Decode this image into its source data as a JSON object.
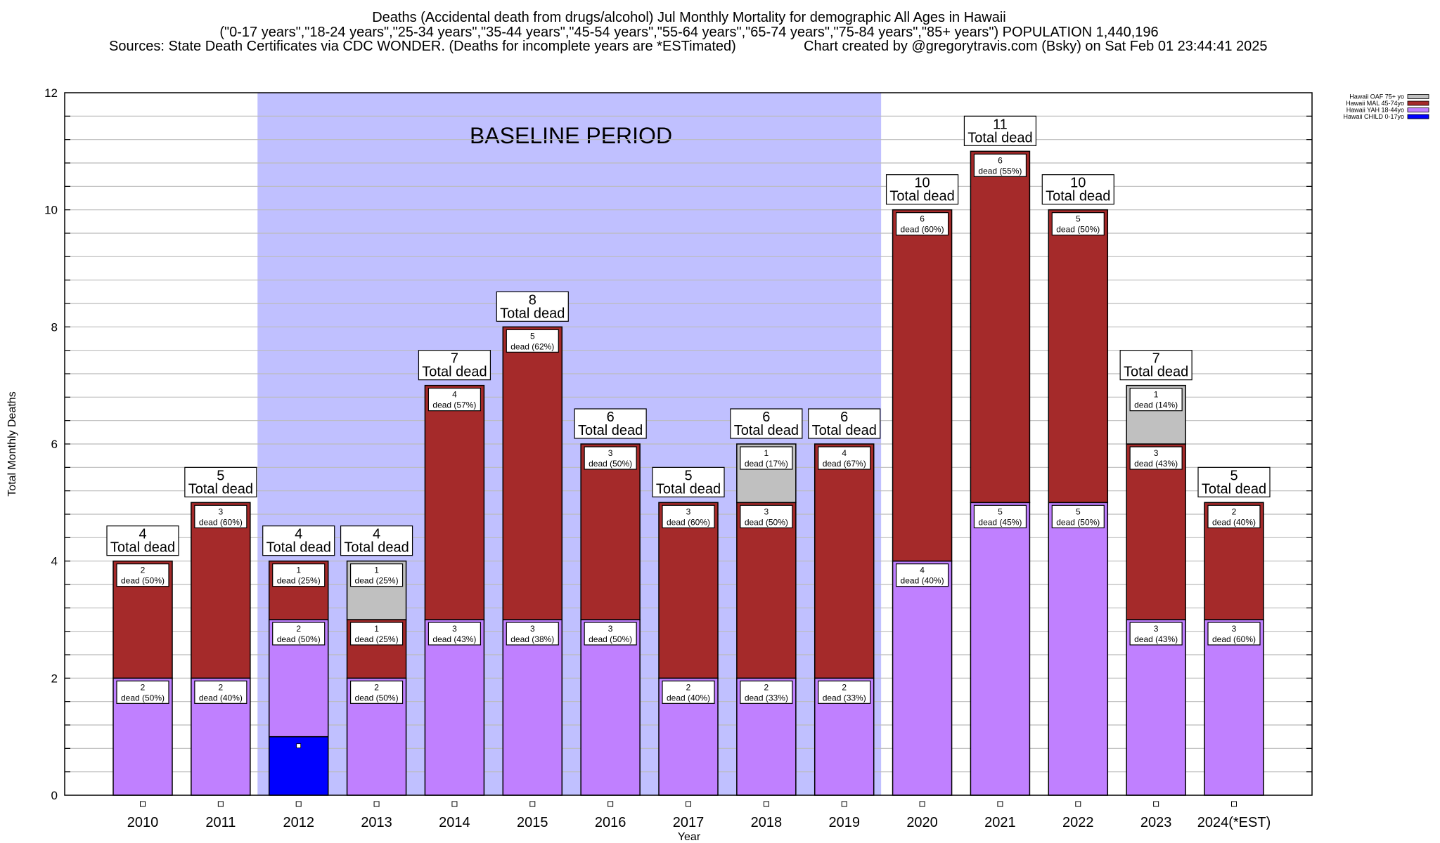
{
  "chart_data": {
    "type": "bar",
    "stacked": true,
    "title_lines": [
      "Deaths (Accidental death from drugs/alcohol) Jul Monthly Mortality for demographic All Ages in Hawaii",
      "(\"0-17 years\",\"18-24 years\",\"25-34 years\",\"35-44 years\",\"45-54 years\",\"55-64 years\",\"65-74 years\",\"75-84 years\",\"85+ years\") POPULATION 1,440,196"
    ],
    "sources": "Sources: State Death Certificates via CDC WONDER. (Deaths for incomplete years are *ESTimated)",
    "credit": "Chart created by @gregorytravis.com (Bsky) on Sat Feb 01 23:44:41 2025",
    "xlabel": "Year",
    "ylabel": "Total Monthly Deaths",
    "ylim": [
      0,
      12
    ],
    "yticks": [
      0,
      2,
      4,
      6,
      8,
      10,
      12
    ],
    "grid": true,
    "grid_step": 0.4,
    "baseline": {
      "label": "BASELINE PERIOD",
      "from": "2012",
      "to": "2019",
      "color": "#c0c0ff"
    },
    "categories": [
      "2010",
      "2011",
      "2012",
      "2013",
      "2014",
      "2015",
      "2016",
      "2017",
      "2018",
      "2019",
      "2020",
      "2021",
      "2022",
      "2023",
      "2024(*EST)"
    ],
    "series": [
      {
        "name": "Hawaii CHILD 0-17yo",
        "color": "#0000ff",
        "values": [
          0,
          0,
          1,
          0,
          0,
          0,
          0,
          0,
          0,
          0,
          0,
          0,
          0,
          0,
          0
        ]
      },
      {
        "name": "Hawaii YAH 18-44yo",
        "color": "#c080ff",
        "values": [
          2,
          2,
          2,
          2,
          3,
          3,
          3,
          2,
          2,
          2,
          4,
          5,
          5,
          3,
          3
        ]
      },
      {
        "name": "Hawaii MAL 45-74yo",
        "color": "#a52a2a",
        "values": [
          2,
          3,
          1,
          1,
          4,
          5,
          3,
          3,
          3,
          4,
          6,
          6,
          5,
          3,
          2
        ]
      },
      {
        "name": "Hawaii OAF 75+ yo",
        "color": "#c0c0c0",
        "values": [
          0,
          0,
          0,
          1,
          0,
          0,
          0,
          0,
          1,
          0,
          0,
          0,
          0,
          1,
          0
        ]
      }
    ],
    "segment_labels": [
      [
        null,
        [
          "2",
          "dead (50%)"
        ],
        [
          "2",
          "dead (50%)"
        ],
        null
      ],
      [
        null,
        [
          "2",
          "dead (40%)"
        ],
        [
          "3",
          "dead (60%)"
        ],
        null
      ],
      [
        null,
        [
          "2",
          "dead (50%)"
        ],
        [
          "1",
          "dead (25%)"
        ],
        null
      ],
      [
        null,
        [
          "2",
          "dead (50%)"
        ],
        [
          "1",
          "dead (25%)"
        ],
        [
          "1",
          "dead (25%)"
        ]
      ],
      [
        null,
        [
          "3",
          "dead (43%)"
        ],
        [
          "4",
          "dead (57%)"
        ],
        null
      ],
      [
        null,
        [
          "3",
          "dead (38%)"
        ],
        [
          "5",
          "dead (62%)"
        ],
        null
      ],
      [
        null,
        [
          "3",
          "dead (50%)"
        ],
        [
          "3",
          "dead (50%)"
        ],
        null
      ],
      [
        null,
        [
          "2",
          "dead (40%)"
        ],
        [
          "3",
          "dead (60%)"
        ],
        null
      ],
      [
        null,
        [
          "2",
          "dead (33%)"
        ],
        [
          "3",
          "dead (50%)"
        ],
        [
          "1",
          "dead (17%)"
        ]
      ],
      [
        null,
        [
          "2",
          "dead (33%)"
        ],
        [
          "4",
          "dead (67%)"
        ],
        null
      ],
      [
        null,
        [
          "4",
          "dead (40%)"
        ],
        [
          "6",
          "dead (60%)"
        ],
        null
      ],
      [
        null,
        [
          "5",
          "dead (45%)"
        ],
        [
          "6",
          "dead (55%)"
        ],
        null
      ],
      [
        null,
        [
          "5",
          "dead (50%)"
        ],
        [
          "5",
          "dead (50%)"
        ],
        null
      ],
      [
        null,
        [
          "3",
          "dead (43%)"
        ],
        [
          "3",
          "dead (43%)"
        ],
        [
          "1",
          "dead (14%)"
        ]
      ],
      [
        null,
        [
          "3",
          "dead (60%)"
        ],
        [
          "2",
          "dead (40%)"
        ],
        null
      ]
    ],
    "totals": [
      "4",
      "5",
      "4",
      "4",
      "7",
      "8",
      "6",
      "5",
      "6",
      "6",
      "10",
      "11",
      "10",
      "7",
      "5"
    ],
    "total_suffix": "Total dead",
    "legend_order": [
      "Hawaii OAF 75+ yo",
      "Hawaii MAL 45-74yo",
      "Hawaii YAH 18-44yo",
      "Hawaii CHILD 0-17yo"
    ],
    "legend_position": "top-right"
  }
}
